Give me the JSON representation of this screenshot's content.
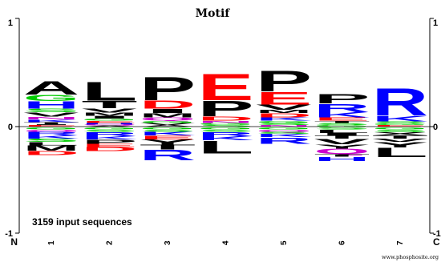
{
  "chart_data": {
    "type": "sequence-logo",
    "title": "Motif",
    "annotation": "3159 input sequences",
    "credit": "www.phosphosite.org",
    "n_terminal_label": "N",
    "c_terminal_label": "C",
    "y_tick_labels": [
      "1",
      "0",
      "-1"
    ],
    "ylim": [
      -1,
      1
    ],
    "positions": [
      "1",
      "2",
      "3",
      "4",
      "5",
      "6",
      "7"
    ],
    "colors": {
      "A": "#000000",
      "L": "#000000",
      "P": "#000000",
      "T": "#000000",
      "I": "#000000",
      "V": "#000000",
      "M": "#000000",
      "F": "#000000",
      "W": "#000000",
      "Y": "#000000",
      "E": "#ff0000",
      "D": "#ff0000",
      "R": "#0000ff",
      "K": "#0000ff",
      "H": "#0000ff",
      "G": "#00cc00",
      "S": "#00cc00",
      "N": "#cc00cc",
      "Q": "#cc00cc"
    },
    "columns": [
      {
        "position": "1",
        "above": [
          {
            "letter": "A",
            "height": 0.13
          },
          {
            "letter": "G",
            "height": 0.06
          },
          {
            "letter": "H",
            "height": 0.07
          },
          {
            "letter": "S",
            "height": 0.035
          },
          {
            "letter": "V",
            "height": 0.04
          },
          {
            "letter": "N",
            "height": 0.025
          },
          {
            "letter": "K",
            "height": 0.025
          },
          {
            "letter": "T",
            "height": 0.02
          },
          {
            "letter": "I",
            "height": 0.01
          },
          {
            "letter": "E",
            "height": 0.012
          }
        ],
        "below": [
          {
            "letter": "G",
            "height": 0.02
          },
          {
            "letter": "Q",
            "height": 0.02
          },
          {
            "letter": "R",
            "height": 0.035
          },
          {
            "letter": "K",
            "height": 0.03
          },
          {
            "letter": "S",
            "height": 0.03
          },
          {
            "letter": "L",
            "height": 0.03
          },
          {
            "letter": "M",
            "height": 0.05
          },
          {
            "letter": "D",
            "height": 0.04
          }
        ]
      },
      {
        "position": "2",
        "above": [
          {
            "letter": "L",
            "height": 0.18
          },
          {
            "letter": "T",
            "height": 0.07
          },
          {
            "letter": "V",
            "height": 0.04
          },
          {
            "letter": "M",
            "height": 0.03
          },
          {
            "letter": "I",
            "height": 0.025
          },
          {
            "letter": "G",
            "height": 0.02
          },
          {
            "letter": "E",
            "height": 0.02
          },
          {
            "letter": "H",
            "height": 0.015
          },
          {
            "letter": "Q",
            "height": 0.01
          },
          {
            "letter": "A",
            "height": 0.01
          }
        ],
        "below": [
          {
            "letter": "G",
            "height": 0.02
          },
          {
            "letter": "S",
            "height": 0.02
          },
          {
            "letter": "R",
            "height": 0.04
          },
          {
            "letter": "K",
            "height": 0.03
          },
          {
            "letter": "P",
            "height": 0.04
          },
          {
            "letter": "E",
            "height": 0.03
          },
          {
            "letter": "D",
            "height": 0.04
          }
        ]
      },
      {
        "position": "3",
        "above": [
          {
            "letter": "P",
            "height": 0.22
          },
          {
            "letter": "D",
            "height": 0.08
          },
          {
            "letter": "I",
            "height": 0.04
          },
          {
            "letter": "M",
            "height": 0.04
          },
          {
            "letter": "Q",
            "height": 0.03
          },
          {
            "letter": "G",
            "height": 0.02
          },
          {
            "letter": "V",
            "height": 0.02
          },
          {
            "letter": "A",
            "height": 0.015
          }
        ],
        "below": [
          {
            "letter": "G",
            "height": 0.02
          },
          {
            "letter": "S",
            "height": 0.02
          },
          {
            "letter": "K",
            "height": 0.035
          },
          {
            "letter": "E",
            "height": 0.035
          },
          {
            "letter": "Y",
            "height": 0.05
          },
          {
            "letter": "T",
            "height": 0.045
          },
          {
            "letter": "R",
            "height": 0.1
          }
        ]
      },
      {
        "position": "4",
        "above": [
          {
            "letter": "E",
            "height": 0.25
          },
          {
            "letter": "P",
            "height": 0.15
          },
          {
            "letter": "D",
            "height": 0.04
          },
          {
            "letter": "N",
            "height": 0.02
          },
          {
            "letter": "G",
            "height": 0.02
          },
          {
            "letter": "S",
            "height": 0.015
          }
        ],
        "below": [
          {
            "letter": "G",
            "height": 0.02
          },
          {
            "letter": "S",
            "height": 0.02
          },
          {
            "letter": "R",
            "height": 0.04
          },
          {
            "letter": "K",
            "height": 0.04
          },
          {
            "letter": "L",
            "height": 0.12
          }
        ]
      },
      {
        "position": "5",
        "above": [
          {
            "letter": "P",
            "height": 0.2
          },
          {
            "letter": "E",
            "height": 0.12
          },
          {
            "letter": "V",
            "height": 0.05
          },
          {
            "letter": "M",
            "height": 0.03
          },
          {
            "letter": "D",
            "height": 0.04
          },
          {
            "letter": "K",
            "height": 0.03
          },
          {
            "letter": "G",
            "height": 0.02
          },
          {
            "letter": "S",
            "height": 0.02
          },
          {
            "letter": "N",
            "height": 0.015
          }
        ],
        "below": [
          {
            "letter": "G",
            "height": 0.02
          },
          {
            "letter": "Q",
            "height": 0.02
          },
          {
            "letter": "S",
            "height": 0.02
          },
          {
            "letter": "K",
            "height": 0.03
          },
          {
            "letter": "R",
            "height": 0.06
          }
        ]
      },
      {
        "position": "6",
        "above": [
          {
            "letter": "P",
            "height": 0.09
          },
          {
            "letter": "R",
            "height": 0.08
          },
          {
            "letter": "K",
            "height": 0.05
          },
          {
            "letter": "E",
            "height": 0.03
          },
          {
            "letter": "T",
            "height": 0.02
          },
          {
            "letter": "S",
            "height": 0.02
          },
          {
            "letter": "G",
            "height": 0.015
          }
        ],
        "below": [
          {
            "letter": "S",
            "height": 0.02
          },
          {
            "letter": "L",
            "height": 0.03
          },
          {
            "letter": "I",
            "height": 0.025
          },
          {
            "letter": "T",
            "height": 0.03
          },
          {
            "letter": "V",
            "height": 0.05
          },
          {
            "letter": "Y",
            "height": 0.04
          },
          {
            "letter": "Q",
            "height": 0.05
          },
          {
            "letter": "T",
            "height": 0.025
          },
          {
            "letter": "H",
            "height": 0.04
          }
        ]
      },
      {
        "position": "7",
        "above": [
          {
            "letter": "R",
            "height": 0.26
          },
          {
            "letter": "K",
            "height": 0.05
          },
          {
            "letter": "S",
            "height": 0.02
          },
          {
            "letter": "G",
            "height": 0.015
          },
          {
            "letter": "E",
            "height": 0.015
          }
        ],
        "below": [
          {
            "letter": "G",
            "height": 0.02
          },
          {
            "letter": "S",
            "height": 0.025
          },
          {
            "letter": "X",
            "height": 0.03
          },
          {
            "letter": "T",
            "height": 0.03
          },
          {
            "letter": "V",
            "height": 0.03
          },
          {
            "letter": "Y",
            "height": 0.05
          },
          {
            "letter": "L",
            "height": 0.09
          }
        ]
      }
    ]
  }
}
